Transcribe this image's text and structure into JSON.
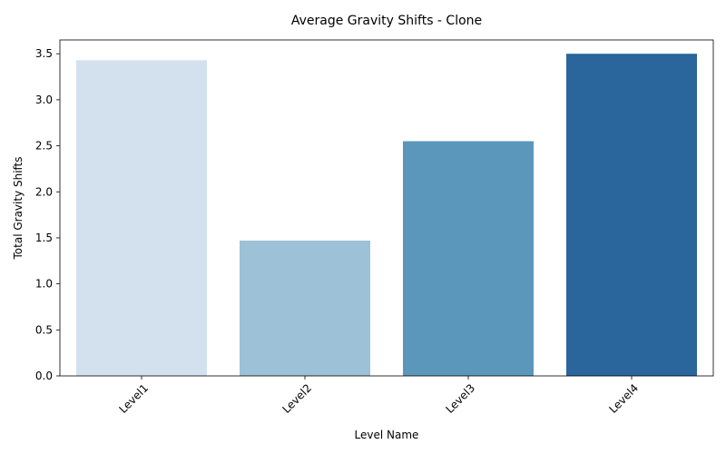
{
  "chart_data": {
    "type": "bar",
    "title": "Average Gravity Shifts - Clone",
    "xlabel": "Level Name",
    "ylabel": "Total Gravity Shifts",
    "categories": [
      "Level1",
      "Level2",
      "Level3",
      "Level4"
    ],
    "values": [
      3.43,
      1.47,
      2.55,
      3.5
    ],
    "colors": [
      "#d3e1ef",
      "#9dc1d6",
      "#5b96bb",
      "#2a659b"
    ],
    "ylim": [
      0,
      3.65
    ],
    "yticks": [
      "0.0",
      "0.5",
      "1.0",
      "1.5",
      "2.0",
      "2.5",
      "3.0",
      "3.5"
    ],
    "grid": false,
    "legend": "none"
  }
}
